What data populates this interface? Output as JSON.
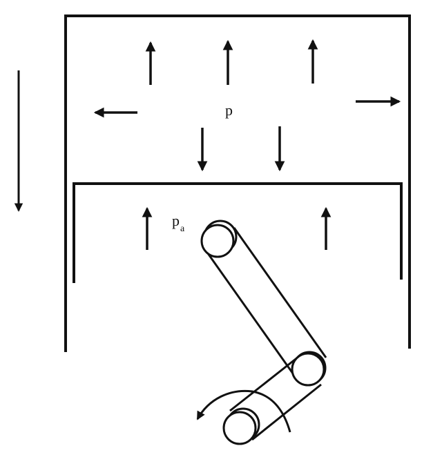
{
  "labels": {
    "chamber_pressure": "p",
    "ambient_pressure_base": "p",
    "ambient_pressure_subscript": "a"
  },
  "colors": {
    "ink": "#111111",
    "background": "#ffffff"
  }
}
